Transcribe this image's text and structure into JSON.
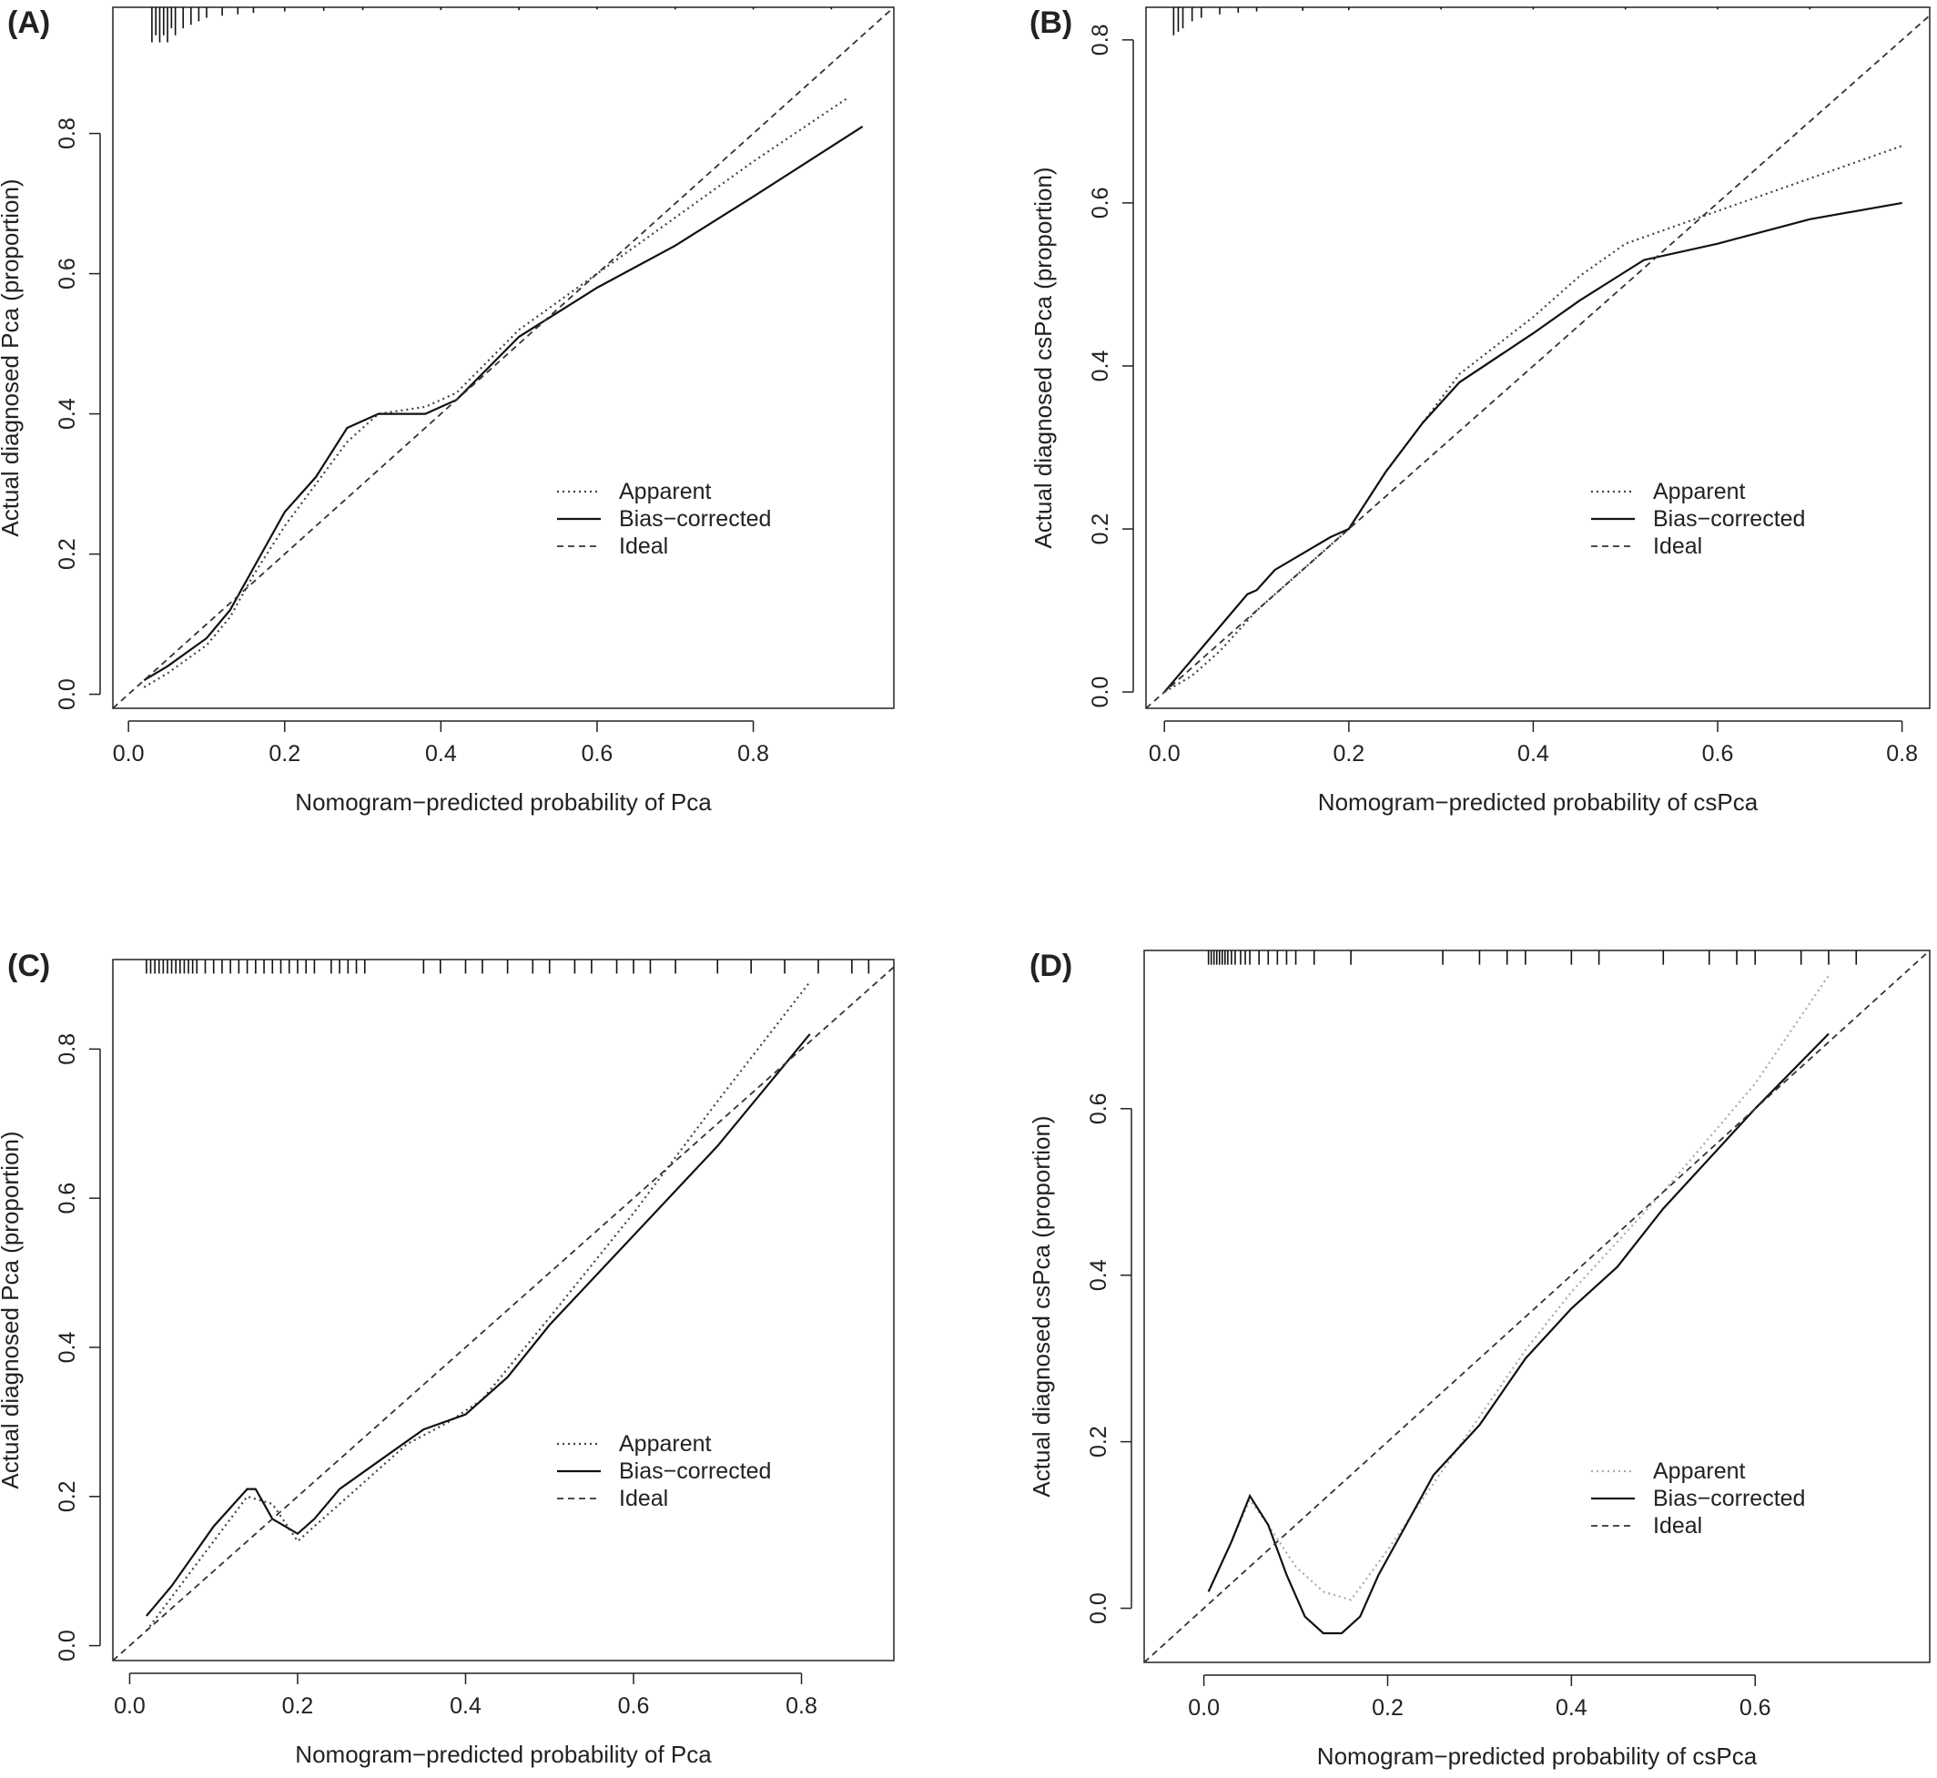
{
  "chart_data": [
    {
      "panel": "(A)",
      "type": "line",
      "xlabel": "Nomogram−predicted probability of Pca",
      "ylabel": "Actual diagnosed Pca (proportion)",
      "xlim": [
        -0.02,
        0.98
      ],
      "ylim": [
        -0.02,
        0.98
      ],
      "xticks": [
        "0.0",
        "0.2",
        "0.4",
        "0.6",
        "0.8"
      ],
      "yticks": [
        "0.0",
        "0.2",
        "0.4",
        "0.6",
        "0.8"
      ],
      "legend": [
        "Apparent",
        "Bias−corrected",
        "Ideal"
      ],
      "legend_position": "bottom-right",
      "grid": false,
      "rug": {
        "x": [
          0.03,
          0.035,
          0.04,
          0.045,
          0.05,
          0.055,
          0.06,
          0.07,
          0.08,
          0.09,
          0.1,
          0.12,
          0.14,
          0.16,
          0.2,
          0.25,
          0.3,
          0.4,
          0.5,
          0.6,
          0.7,
          0.8,
          0.9
        ],
        "len": [
          0.05,
          0.04,
          0.05,
          0.04,
          0.05,
          0.03,
          0.04,
          0.03,
          0.025,
          0.02,
          0.015,
          0.012,
          0.01,
          0.008,
          0.006,
          0.005,
          0.004,
          0.004,
          0.004,
          0.003,
          0.003,
          0.003,
          0.003
        ]
      },
      "series": [
        {
          "name": "Apparent",
          "style": "dotted",
          "x": [
            0.02,
            0.05,
            0.1,
            0.13,
            0.16,
            0.2,
            0.24,
            0.28,
            0.32,
            0.38,
            0.42,
            0.5,
            0.6,
            0.7,
            0.8,
            0.92
          ],
          "y": [
            0.01,
            0.03,
            0.07,
            0.11,
            0.17,
            0.24,
            0.3,
            0.36,
            0.4,
            0.41,
            0.43,
            0.52,
            0.6,
            0.68,
            0.76,
            0.85
          ]
        },
        {
          "name": "Bias−corrected",
          "style": "solid",
          "x": [
            0.02,
            0.05,
            0.1,
            0.13,
            0.16,
            0.2,
            0.24,
            0.28,
            0.32,
            0.38,
            0.42,
            0.5,
            0.6,
            0.7,
            0.8,
            0.94
          ],
          "y": [
            0.02,
            0.04,
            0.08,
            0.12,
            0.18,
            0.26,
            0.31,
            0.38,
            0.4,
            0.4,
            0.42,
            0.51,
            0.58,
            0.64,
            0.71,
            0.81
          ]
        },
        {
          "name": "Ideal",
          "style": "dashed",
          "x": [
            -0.02,
            0.98
          ],
          "y": [
            -0.02,
            0.98
          ]
        }
      ]
    },
    {
      "panel": "(B)",
      "type": "line",
      "xlabel": "Nomogram−predicted probability of csPca",
      "ylabel": "Actual diagnosed csPca (proportion)",
      "xlim": [
        -0.02,
        0.83
      ],
      "ylim": [
        -0.02,
        0.84
      ],
      "xticks": [
        "0.0",
        "0.2",
        "0.4",
        "0.6",
        "0.8"
      ],
      "yticks": [
        "0.0",
        "0.2",
        "0.4",
        "0.6",
        "0.8"
      ],
      "legend": [
        "Apparent",
        "Bias−corrected",
        "Ideal"
      ],
      "legend_position": "bottom-right",
      "grid": false,
      "rug": {
        "x": [
          0.01,
          0.015,
          0.02,
          0.03,
          0.04,
          0.06,
          0.08,
          0.1,
          0.15,
          0.2,
          0.3,
          0.4,
          0.5,
          0.6,
          0.7
        ],
        "len": [
          0.04,
          0.035,
          0.03,
          0.02,
          0.015,
          0.01,
          0.008,
          0.006,
          0.005,
          0.004,
          0.003,
          0.003,
          0.003,
          0.003,
          0.003
        ]
      },
      "series": [
        {
          "name": "Apparent",
          "style": "dotted",
          "x": [
            0.0,
            0.03,
            0.06,
            0.1,
            0.15,
            0.2,
            0.24,
            0.28,
            0.32,
            0.4,
            0.45,
            0.5,
            0.6,
            0.7,
            0.8
          ],
          "y": [
            0.0,
            0.02,
            0.05,
            0.1,
            0.15,
            0.2,
            0.27,
            0.33,
            0.39,
            0.46,
            0.51,
            0.55,
            0.59,
            0.63,
            0.67
          ]
        },
        {
          "name": "Bias−corrected",
          "style": "solid",
          "x": [
            0.0,
            0.03,
            0.06,
            0.09,
            0.1,
            0.12,
            0.15,
            0.18,
            0.2,
            0.24,
            0.28,
            0.32,
            0.4,
            0.45,
            0.52,
            0.6,
            0.7,
            0.8
          ],
          "y": [
            0.0,
            0.04,
            0.08,
            0.12,
            0.125,
            0.15,
            0.17,
            0.19,
            0.2,
            0.27,
            0.33,
            0.38,
            0.44,
            0.48,
            0.53,
            0.55,
            0.58,
            0.6
          ]
        },
        {
          "name": "Ideal",
          "style": "dashed",
          "x": [
            -0.02,
            0.83
          ],
          "y": [
            -0.02,
            0.83
          ]
        }
      ]
    },
    {
      "panel": "(C)",
      "type": "line",
      "xlabel": "Nomogram−predicted probability of Pca",
      "ylabel": "Actual diagnosed Pca (proportion)",
      "xlim": [
        -0.02,
        0.91
      ],
      "ylim": [
        -0.02,
        0.92
      ],
      "xticks": [
        "0.0",
        "0.2",
        "0.4",
        "0.6",
        "0.8"
      ],
      "yticks": [
        "0.0",
        "0.2",
        "0.4",
        "0.6",
        "0.8"
      ],
      "legend": [
        "Apparent",
        "Bias−corrected",
        "Ideal"
      ],
      "legend_position": "bottom-right",
      "grid": false,
      "rug": {
        "x": [
          0.02,
          0.025,
          0.03,
          0.035,
          0.04,
          0.045,
          0.05,
          0.055,
          0.06,
          0.065,
          0.07,
          0.075,
          0.08,
          0.09,
          0.1,
          0.11,
          0.12,
          0.13,
          0.14,
          0.15,
          0.16,
          0.17,
          0.18,
          0.19,
          0.2,
          0.21,
          0.22,
          0.24,
          0.25,
          0.26,
          0.27,
          0.28,
          0.35,
          0.37,
          0.4,
          0.42,
          0.45,
          0.48,
          0.5,
          0.53,
          0.55,
          0.58,
          0.6,
          0.62,
          0.65,
          0.7,
          0.74,
          0.78,
          0.82,
          0.86,
          0.88
        ],
        "len": [
          0.02,
          0.02,
          0.02,
          0.02,
          0.02,
          0.02,
          0.02,
          0.02,
          0.02,
          0.02,
          0.02,
          0.02,
          0.02,
          0.02,
          0.02,
          0.02,
          0.02,
          0.02,
          0.02,
          0.02,
          0.02,
          0.02,
          0.02,
          0.02,
          0.02,
          0.02,
          0.02,
          0.02,
          0.02,
          0.02,
          0.02,
          0.02,
          0.02,
          0.02,
          0.02,
          0.02,
          0.02,
          0.02,
          0.02,
          0.02,
          0.02,
          0.02,
          0.02,
          0.02,
          0.02,
          0.02,
          0.02,
          0.02,
          0.02,
          0.02,
          0.02
        ]
      },
      "series": [
        {
          "name": "Apparent",
          "style": "dotted",
          "x": [
            0.02,
            0.06,
            0.1,
            0.14,
            0.17,
            0.2,
            0.23,
            0.28,
            0.33,
            0.38,
            0.42,
            0.5,
            0.6,
            0.7,
            0.81
          ],
          "y": [
            0.02,
            0.08,
            0.14,
            0.2,
            0.19,
            0.14,
            0.17,
            0.22,
            0.27,
            0.3,
            0.33,
            0.44,
            0.58,
            0.73,
            0.89
          ]
        },
        {
          "name": "Bias−corrected",
          "style": "solid",
          "x": [
            0.02,
            0.05,
            0.1,
            0.14,
            0.15,
            0.17,
            0.2,
            0.22,
            0.25,
            0.3,
            0.35,
            0.4,
            0.45,
            0.5,
            0.6,
            0.7,
            0.81
          ],
          "y": [
            0.04,
            0.08,
            0.16,
            0.21,
            0.21,
            0.17,
            0.15,
            0.17,
            0.21,
            0.25,
            0.29,
            0.31,
            0.36,
            0.43,
            0.55,
            0.67,
            0.82
          ]
        },
        {
          "name": "Ideal",
          "style": "dashed",
          "x": [
            -0.02,
            0.91
          ],
          "y": [
            -0.02,
            0.91
          ]
        }
      ]
    },
    {
      "panel": "(D)",
      "type": "line",
      "xlabel": "Nomogram−predicted probability of csPca",
      "ylabel": "Actual diagnosed csPca (proportion)",
      "xlim": [
        -0.065,
        0.79
      ],
      "ylim": [
        -0.065,
        0.79
      ],
      "xticks": [
        "0.0",
        "0.2",
        "0.4",
        "0.6"
      ],
      "yticks": [
        "0.0",
        "0.2",
        "0.4",
        "0.6"
      ],
      "legend": [
        "Apparent",
        "Bias−corrected",
        "Ideal"
      ],
      "legend_position": "bottom-right",
      "grid": false,
      "rug": {
        "x": [
          0.005,
          0.008,
          0.011,
          0.014,
          0.017,
          0.02,
          0.023,
          0.026,
          0.03,
          0.034,
          0.04,
          0.045,
          0.05,
          0.06,
          0.07,
          0.08,
          0.09,
          0.1,
          0.12,
          0.16,
          0.26,
          0.3,
          0.33,
          0.35,
          0.4,
          0.43,
          0.5,
          0.55,
          0.58,
          0.6,
          0.65,
          0.68,
          0.71
        ],
        "len": [
          0.02,
          0.02,
          0.02,
          0.02,
          0.02,
          0.02,
          0.02,
          0.02,
          0.02,
          0.02,
          0.02,
          0.02,
          0.02,
          0.02,
          0.02,
          0.02,
          0.02,
          0.02,
          0.02,
          0.02,
          0.02,
          0.02,
          0.02,
          0.02,
          0.02,
          0.02,
          0.02,
          0.02,
          0.02,
          0.02,
          0.02,
          0.02,
          0.02
        ]
      },
      "series": [
        {
          "name": "Apparent",
          "style": "dotted",
          "light": true,
          "x": [
            0.005,
            0.03,
            0.05,
            0.07,
            0.1,
            0.13,
            0.16,
            0.2,
            0.25,
            0.3,
            0.35,
            0.4,
            0.5,
            0.6,
            0.68
          ],
          "y": [
            0.02,
            0.08,
            0.13,
            0.1,
            0.05,
            0.02,
            0.01,
            0.07,
            0.15,
            0.23,
            0.31,
            0.38,
            0.5,
            0.63,
            0.76
          ]
        },
        {
          "name": "Bias−corrected",
          "style": "solid",
          "x": [
            0.005,
            0.03,
            0.05,
            0.07,
            0.09,
            0.11,
            0.13,
            0.15,
            0.17,
            0.19,
            0.22,
            0.25,
            0.3,
            0.35,
            0.4,
            0.45,
            0.5,
            0.6,
            0.68
          ],
          "y": [
            0.02,
            0.08,
            0.135,
            0.1,
            0.04,
            -0.01,
            -0.03,
            -0.03,
            -0.01,
            0.04,
            0.1,
            0.16,
            0.22,
            0.3,
            0.36,
            0.41,
            0.48,
            0.6,
            0.69
          ]
        },
        {
          "name": "Ideal",
          "style": "dashed",
          "x": [
            -0.065,
            0.79
          ],
          "y": [
            -0.065,
            0.79
          ]
        }
      ]
    }
  ]
}
